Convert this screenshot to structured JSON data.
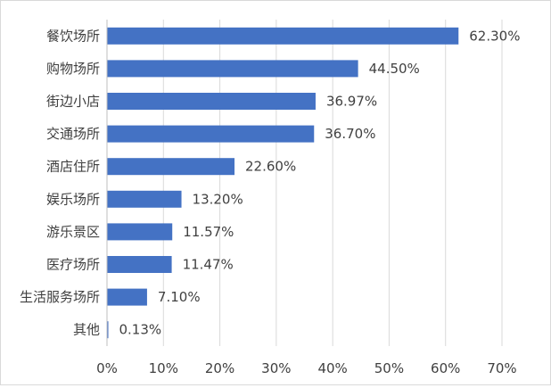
{
  "chart_data": {
    "type": "bar",
    "orientation": "horizontal",
    "categories": [
      "餐饮场所",
      "购物场所",
      "街边小店",
      "交通场所",
      "酒店住所",
      "娱乐场所",
      "游乐景区",
      "医疗场所",
      "生活服务场所",
      "其他"
    ],
    "values": [
      62.3,
      44.5,
      36.97,
      36.7,
      22.6,
      13.2,
      11.57,
      11.47,
      7.1,
      0.13
    ],
    "value_labels": [
      "62.30%",
      "44.50%",
      "36.97%",
      "36.70%",
      "22.60%",
      "13.20%",
      "11.57%",
      "11.47%",
      "7.10%",
      "0.13%"
    ],
    "xlim": [
      0,
      70
    ],
    "x_ticks": [
      0,
      10,
      20,
      30,
      40,
      50,
      60,
      70
    ],
    "x_tick_labels": [
      "0%",
      "10%",
      "20%",
      "30%",
      "40%",
      "50%",
      "60%",
      "70%"
    ],
    "grid": "vertical",
    "legend": "none",
    "bar_color": "#4472c4",
    "grid_color": "#d9d9d9",
    "axis_color": "#bfbfbf",
    "text_color": "#404040"
  }
}
